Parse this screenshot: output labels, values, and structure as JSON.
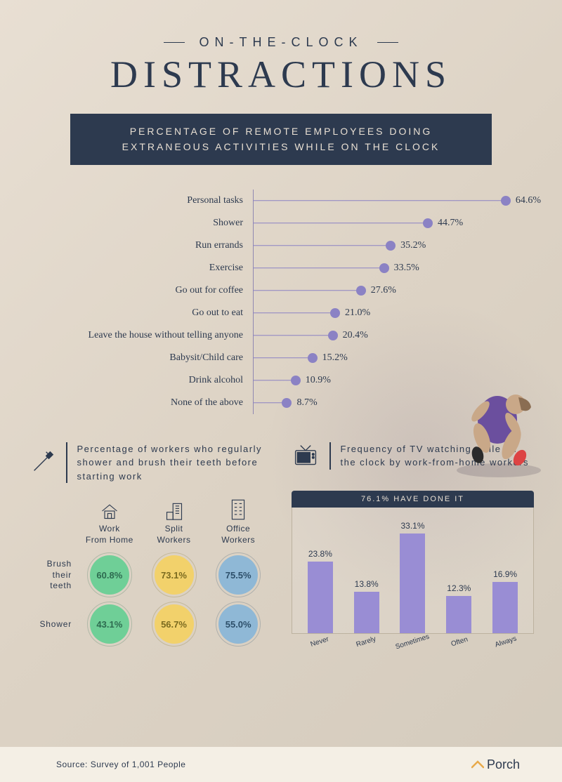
{
  "header": {
    "pretitle": "ON-THE-CLOCK",
    "title": "DISTRACTIONS"
  },
  "banner": "PERCENTAGE OF REMOTE EMPLOYEES DOING EXTRANEOUS ACTIVITIES WHILE ON THE CLOCK",
  "lollipop": {
    "max": 70,
    "dot_color": "#8b82c4",
    "items": [
      {
        "label": "Personal tasks",
        "value": 64.6,
        "display": "64.6%"
      },
      {
        "label": "Shower",
        "value": 44.7,
        "display": "44.7%"
      },
      {
        "label": "Run errands",
        "value": 35.2,
        "display": "35.2%"
      },
      {
        "label": "Exercise",
        "value": 33.5,
        "display": "33.5%"
      },
      {
        "label": "Go out for coffee",
        "value": 27.6,
        "display": "27.6%"
      },
      {
        "label": "Go out to eat",
        "value": 21.0,
        "display": "21.0%"
      },
      {
        "label": "Leave the house without telling anyone",
        "value": 20.4,
        "display": "20.4%"
      },
      {
        "label": "Babysit/Child care",
        "value": 15.2,
        "display": "15.2%"
      },
      {
        "label": "Drink alcohol",
        "value": 10.9,
        "display": "10.9%"
      },
      {
        "label": "None of the above",
        "value": 8.7,
        "display": "8.7%"
      }
    ]
  },
  "hygiene": {
    "title": "Percentage of workers who regularly shower and brush their teeth before starting work",
    "columns": [
      {
        "label": "Work From Home"
      },
      {
        "label": "Split Workers"
      },
      {
        "label": "Office Workers"
      }
    ],
    "rows": [
      {
        "label": "Brush their teeth",
        "values": [
          "60.8%",
          "73.1%",
          "75.5%"
        ]
      },
      {
        "label": "Shower",
        "values": [
          "43.1%",
          "56.7%",
          "55.0%"
        ]
      }
    ],
    "circle_colors": [
      "#6fcf97",
      "#f2d16b",
      "#8fb8d6"
    ],
    "circle_text_colors": [
      "#2d6a4f",
      "#7a6a1f",
      "#2d4f6a"
    ]
  },
  "tv": {
    "title": "Frequency of TV watching while on the clock by work-from-home workers",
    "banner": "76.1% HAVE DONE IT",
    "bar_color": "#998dd4",
    "max": 35,
    "items": [
      {
        "label": "Never",
        "value": 23.8,
        "display": "23.8%"
      },
      {
        "label": "Rarely",
        "value": 13.8,
        "display": "13.8%"
      },
      {
        "label": "Sometimes",
        "value": 33.1,
        "display": "33.1%"
      },
      {
        "label": "Often",
        "value": 12.3,
        "display": "12.3%"
      },
      {
        "label": "Always",
        "value": 16.9,
        "display": "16.9%"
      }
    ]
  },
  "footer": {
    "source": "Source: Survey of 1,001 People",
    "logo": "Porch"
  }
}
